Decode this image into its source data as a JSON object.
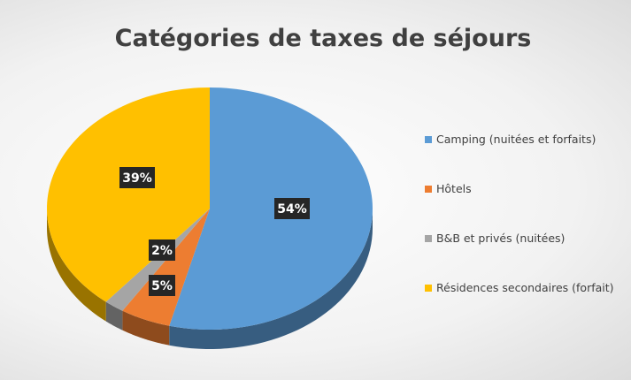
{
  "chart_data": {
    "type": "pie3d",
    "title": "Catégories de taxes de séjours",
    "categories": [
      "Camping (nuitées et forfaits)",
      "Hôtels",
      "B&B et privés (nuitées)",
      "Résidences secondaires (forfait)"
    ],
    "values": [
      54,
      5,
      2,
      39
    ],
    "value_labels": [
      "54%",
      "5%",
      "2%",
      "39%"
    ],
    "colors": [
      "#5b9bd5",
      "#ed7d31",
      "#a5a5a5",
      "#ffc000"
    ],
    "legend": "right"
  }
}
